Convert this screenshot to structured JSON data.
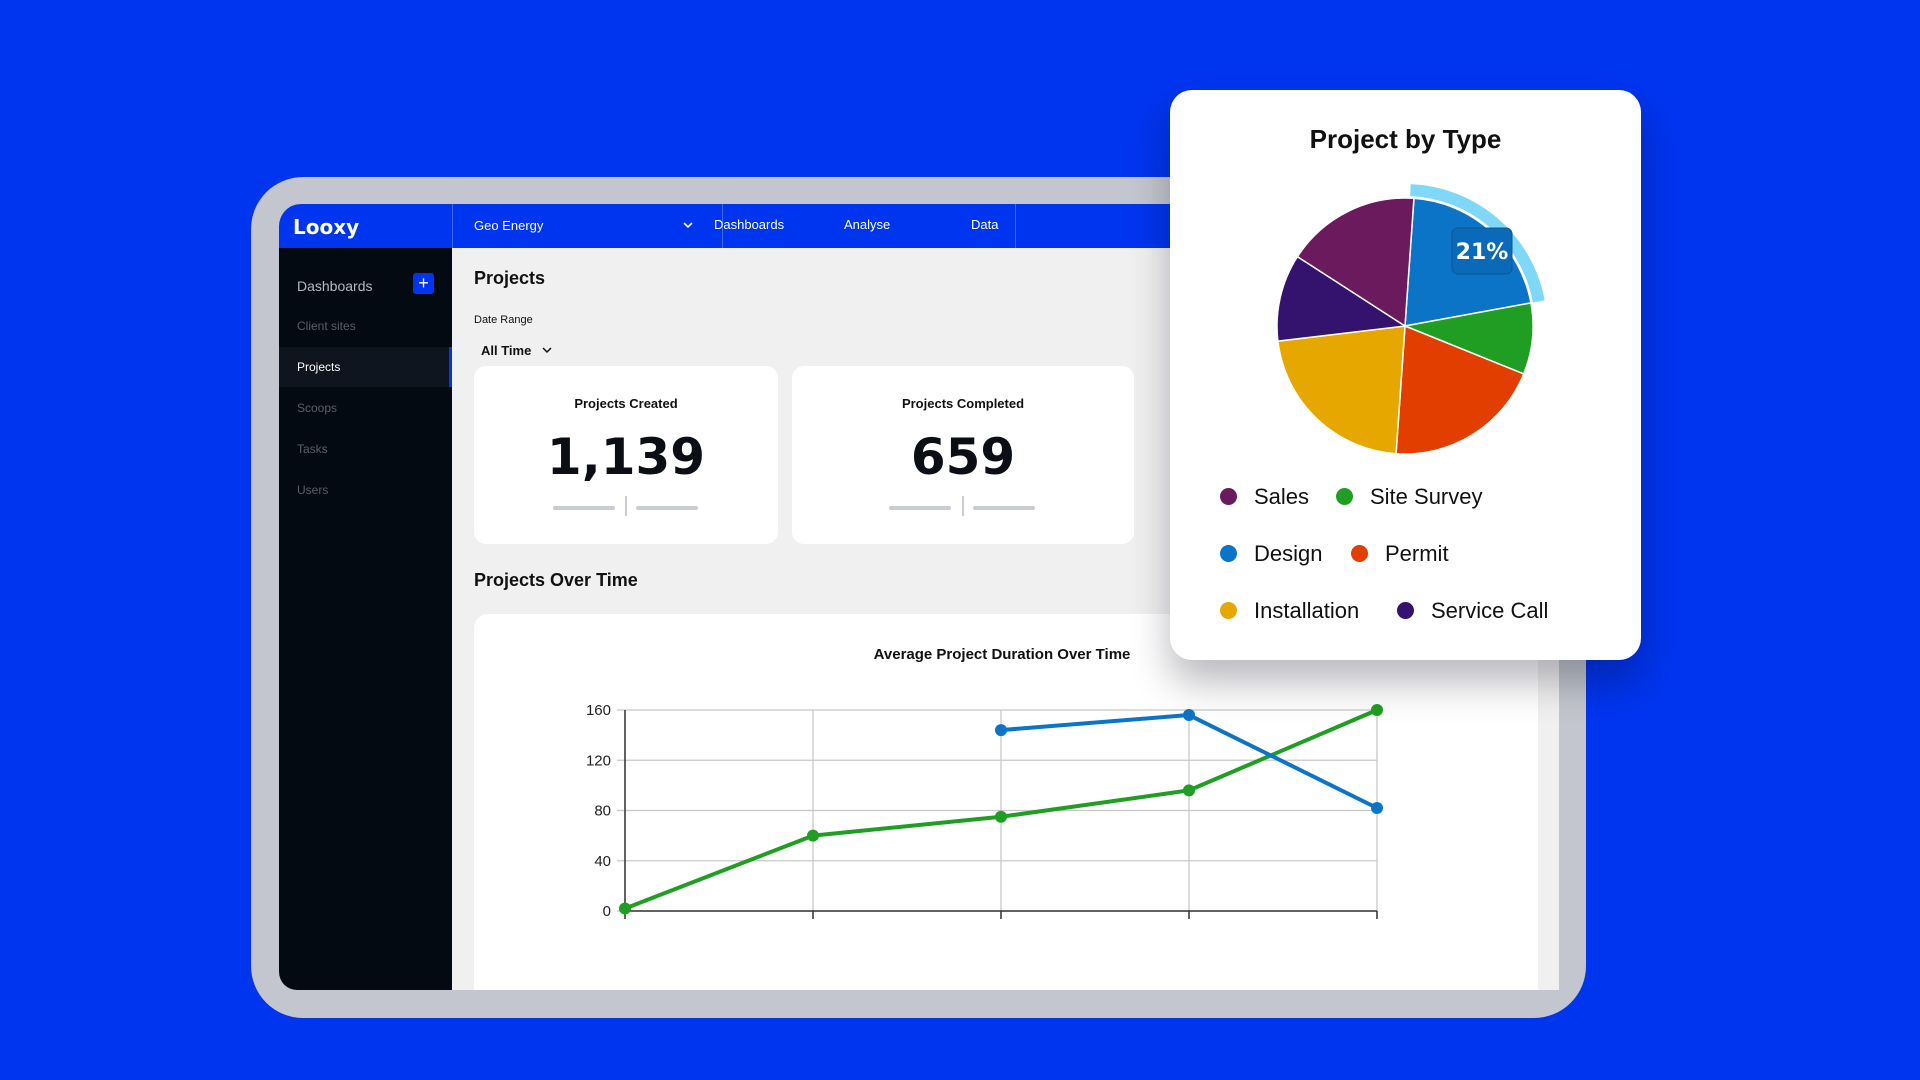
{
  "app": {
    "logo": "Looxy",
    "workspace": "Geo Energy",
    "nav": [
      "Dashboards",
      "Analyse",
      "Data"
    ]
  },
  "sidebar": {
    "title": "Dashboards",
    "add_label": "+",
    "items": [
      {
        "label": "Client sites",
        "active": false
      },
      {
        "label": "Projects",
        "active": true
      },
      {
        "label": "Scoops",
        "active": false
      },
      {
        "label": "Tasks",
        "active": false
      },
      {
        "label": "Users",
        "active": false
      }
    ]
  },
  "main": {
    "title": "Projects",
    "date_range": {
      "label": "Date Range",
      "value": "All Time"
    },
    "kpis": [
      {
        "title": "Projects Created",
        "value": "1,139"
      },
      {
        "title": "Projects Completed",
        "value": "659"
      }
    ],
    "section_title": "Projects Over Time"
  },
  "colors": {
    "brand": "#0035ef",
    "sales": "#6b1a5e",
    "site_survey": "#1f9e23",
    "design": "#0b74c6",
    "permit": "#e13e00",
    "installation": "#e6a800",
    "service_call": "#33136e",
    "highlight": "#7fd8f8"
  },
  "pie_card": {
    "title": "Project by Type",
    "highlight_label": "21%",
    "legend": [
      {
        "label": "Sales",
        "color": "#6b1a5e"
      },
      {
        "label": "Site Survey",
        "color": "#1f9e23"
      },
      {
        "label": "Design",
        "color": "#0b74c6"
      },
      {
        "label": "Permit",
        "color": "#e13e00"
      },
      {
        "label": "Installation",
        "color": "#e6a800"
      },
      {
        "label": "Service Call",
        "color": "#33136e"
      }
    ]
  },
  "chart_data": [
    {
      "type": "line",
      "title": "Average Project Duration Over Time",
      "x": [
        1,
        2,
        3,
        4,
        5
      ],
      "ylim": [
        0,
        160
      ],
      "yticks": [
        0,
        40,
        80,
        120,
        160
      ],
      "grid": true,
      "series": [
        {
          "color": "#1f9e23",
          "values": [
            2,
            60,
            75,
            96,
            160
          ]
        },
        {
          "color": "#0b74c6",
          "values": [
            null,
            null,
            144,
            156,
            82
          ]
        }
      ]
    },
    {
      "type": "pie",
      "title": "Project by Type",
      "slices": [
        {
          "label": "Design",
          "value": 21,
          "color": "#0b74c6"
        },
        {
          "label": "Site Survey",
          "value": 9,
          "color": "#1f9e23"
        },
        {
          "label": "Permit",
          "value": 20,
          "color": "#e13e00"
        },
        {
          "label": "Installation",
          "value": 22,
          "color": "#e6a800"
        },
        {
          "label": "Service Call",
          "value": 11,
          "color": "#33136e"
        },
        {
          "label": "Sales",
          "value": 17,
          "color": "#6b1a5e"
        }
      ]
    }
  ]
}
